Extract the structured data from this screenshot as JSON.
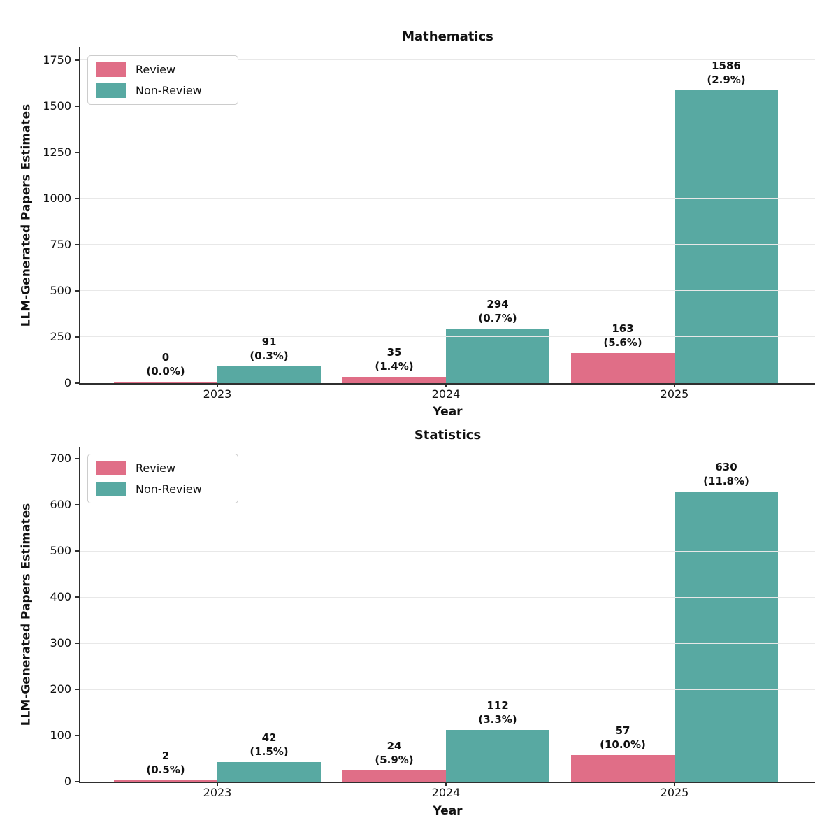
{
  "figure": {
    "ylabel": "LLM-Generated Papers Estimates",
    "xlabel": "Year",
    "legend": {
      "review": "Review",
      "non_review": "Non-Review"
    },
    "colors": {
      "review": "#e06e87",
      "non_review": "#58a9a2",
      "grid": "#e8e8e8",
      "spine": "#2f2f2f",
      "text": "#111111"
    }
  },
  "chart_data": [
    {
      "type": "bar",
      "title": "Mathematics",
      "xlabel": "Year",
      "ylabel": "LLM-Generated Papers Estimates",
      "categories": [
        "2023",
        "2024",
        "2025"
      ],
      "series": [
        {
          "name": "Review",
          "color": "#e06e87",
          "values": [
            0,
            35,
            163
          ],
          "pct_labels": [
            "(0.0%)",
            "(1.4%)",
            "(5.6%)"
          ]
        },
        {
          "name": "Non-Review",
          "color": "#58a9a2",
          "values": [
            91,
            294,
            1586
          ],
          "pct_labels": [
            "(0.3%)",
            "(0.7%)",
            "(2.9%)"
          ]
        }
      ],
      "yticks": [
        0,
        250,
        500,
        750,
        1000,
        1250,
        1500,
        1750
      ],
      "ylim": [
        0,
        1820
      ],
      "grid": true,
      "legend_position": "upper-left"
    },
    {
      "type": "bar",
      "title": "Statistics",
      "xlabel": "Year",
      "ylabel": "LLM-Generated Papers Estimates",
      "categories": [
        "2023",
        "2024",
        "2025"
      ],
      "series": [
        {
          "name": "Review",
          "color": "#e06e87",
          "values": [
            2,
            24,
            57
          ],
          "pct_labels": [
            "(0.5%)",
            "(5.9%)",
            "(10.0%)"
          ]
        },
        {
          "name": "Non-Review",
          "color": "#58a9a2",
          "values": [
            42,
            112,
            630
          ],
          "pct_labels": [
            "(1.5%)",
            "(3.3%)",
            "(11.8%)"
          ]
        }
      ],
      "yticks": [
        0,
        100,
        200,
        300,
        400,
        500,
        600,
        700
      ],
      "ylim": [
        0,
        725
      ],
      "grid": true,
      "legend_position": "upper-left"
    }
  ]
}
